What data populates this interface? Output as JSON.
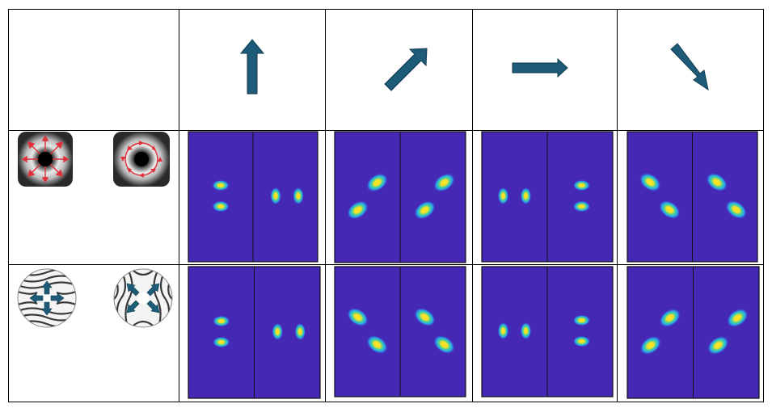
{
  "colors": {
    "arrow": "#1d5b78",
    "arrow_outline": "#0f3a4f",
    "panel_background": "#4528b4",
    "grid_line": "#000000"
  },
  "columns": [
    {
      "arrow": "arrow-up-icon"
    },
    {
      "arrow": "arrow-up-right-icon"
    },
    {
      "arrow": "arrow-right-icon"
    },
    {
      "arrow": "arrow-down-right-icon"
    }
  ],
  "rows": [
    {
      "mode_icons": [
        "radial-vector-beam-icon",
        "azimuthal-vector-beam-icon"
      ],
      "panels": [
        {
          "left": "two-lobes-vertical",
          "right": "two-lobes-horizontal"
        },
        {
          "left": "two-lobes-antidiagonal",
          "right": "two-lobes-antidiagonal"
        },
        {
          "left": "two-lobes-horizontal",
          "right": "two-lobes-vertical"
        },
        {
          "left": "two-lobes-diagonal",
          "right": "two-lobes-diagonal"
        }
      ]
    },
    {
      "mode_icons": [
        "q-plate-radial-icon",
        "q-plate-diagonal-icon"
      ],
      "panels": [
        {
          "left": "two-lobes-vertical",
          "right": "two-lobes-horizontal"
        },
        {
          "left": "two-lobes-diagonal",
          "right": "two-lobes-diagonal"
        },
        {
          "left": "two-lobes-horizontal",
          "right": "two-lobes-vertical"
        },
        {
          "left": "two-lobes-antidiagonal",
          "right": "two-lobes-antidiagonal"
        }
      ]
    }
  ]
}
